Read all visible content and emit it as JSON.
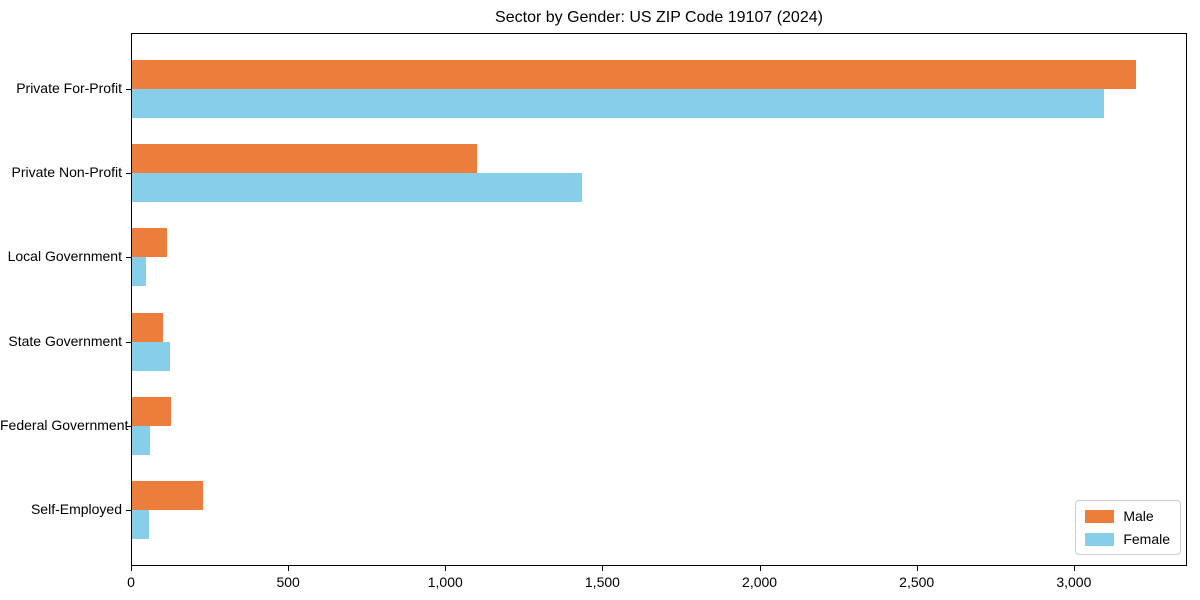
{
  "chart_data": {
    "type": "bar",
    "orientation": "horizontal",
    "title": "Sector by Gender: US ZIP Code 19107 (2024)",
    "categories": [
      "Private For-Profit",
      "Private Non-Profit",
      "Local Government",
      "State Government",
      "Federal Government",
      "Self-Employed"
    ],
    "series": [
      {
        "name": "Male",
        "color": "#ED7D3A",
        "values": [
          3200,
          1100,
          110,
          100,
          125,
          225
        ]
      },
      {
        "name": "Female",
        "color": "#87CEEB",
        "values": [
          3100,
          1435,
          45,
          120,
          57,
          55
        ]
      }
    ],
    "xlabel": "",
    "ylabel": "",
    "xlim": [
      0,
      3360
    ],
    "xticks": [
      0,
      500,
      1000,
      1500,
      2000,
      2500,
      3000
    ],
    "xtick_labels": [
      "0",
      "500",
      "1,000",
      "1,500",
      "2,000",
      "2,500",
      "3,000"
    ],
    "grid": false,
    "legend": {
      "position": "lower-right"
    },
    "frame_color": "#000000",
    "background_color": "#ffffff"
  }
}
